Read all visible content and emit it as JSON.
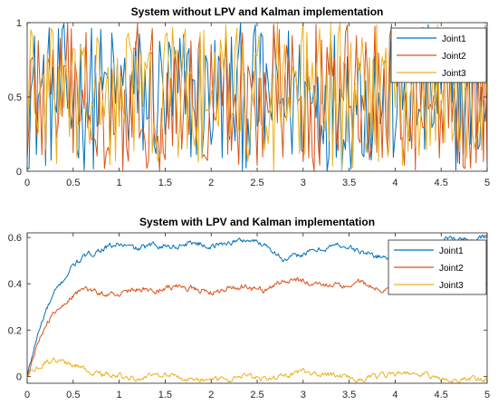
{
  "chart_data": [
    {
      "type": "line",
      "title": "System without LPV and Kalman implementation",
      "xlabel": "",
      "ylabel": "",
      "xlim": [
        0,
        5
      ],
      "ylim": [
        0,
        1
      ],
      "xticks": [
        0,
        0.5,
        1,
        1.5,
        2,
        2.5,
        3,
        3.5,
        4,
        4.5,
        5
      ],
      "xtick_labels": [
        "0",
        "0.5",
        "1",
        "1.5",
        "2",
        "2.5",
        "3",
        "3.5",
        "4",
        "4.5",
        "5"
      ],
      "yticks": [
        0,
        0.5,
        1
      ],
      "ytick_labels": [
        "0",
        "0.5",
        "1"
      ],
      "grid": false,
      "legend_position": "top-right",
      "series": [
        {
          "name": "Joint1",
          "color": "#0072BD",
          "style": "uniform-random",
          "min": 0,
          "max": 1
        },
        {
          "name": "Joint2",
          "color": "#D95319",
          "style": "uniform-random",
          "min": 0,
          "max": 1
        },
        {
          "name": "Joint3",
          "color": "#EDB120",
          "style": "uniform-random",
          "min": 0,
          "max": 1
        }
      ]
    },
    {
      "type": "line",
      "title": "System with LPV and Kalman implementation",
      "xlabel": "",
      "ylabel": "",
      "xlim": [
        0,
        5
      ],
      "ylim": [
        -0.03,
        0.62
      ],
      "xticks": [
        0,
        0.5,
        1,
        1.5,
        2,
        2.5,
        3,
        3.5,
        4,
        4.5,
        5
      ],
      "xtick_labels": [
        "0",
        "0.5",
        "1",
        "1.5",
        "2",
        "2.5",
        "3",
        "3.5",
        "4",
        "4.5",
        "5"
      ],
      "yticks": [
        0,
        0.2,
        0.4,
        0.6
      ],
      "ytick_labels": [
        "0",
        "0.2",
        "0.4",
        "0.6"
      ],
      "grid": false,
      "legend_position": "top-right",
      "series": [
        {
          "name": "Joint1",
          "color": "#0072BD",
          "x": [
            0,
            0.1,
            0.2,
            0.3,
            0.4,
            0.5,
            0.6,
            0.7,
            0.8,
            1.0,
            1.2,
            1.4,
            1.6,
            1.8,
            2.0,
            2.2,
            2.4,
            2.6,
            2.8,
            3.0,
            3.2,
            3.4,
            3.6,
            3.8,
            4.0,
            4.2,
            4.4,
            4.6,
            4.8,
            5.0
          ],
          "values": [
            0.0,
            0.16,
            0.28,
            0.36,
            0.42,
            0.48,
            0.51,
            0.53,
            0.55,
            0.57,
            0.55,
            0.57,
            0.56,
            0.58,
            0.56,
            0.58,
            0.59,
            0.57,
            0.5,
            0.53,
            0.55,
            0.57,
            0.54,
            0.52,
            0.51,
            0.55,
            0.57,
            0.6,
            0.59,
            0.6
          ]
        },
        {
          "name": "Joint2",
          "color": "#D95319",
          "x": [
            0,
            0.1,
            0.2,
            0.3,
            0.4,
            0.5,
            0.6,
            0.7,
            0.8,
            1.0,
            1.2,
            1.4,
            1.6,
            1.8,
            2.0,
            2.2,
            2.4,
            2.6,
            2.8,
            3.0,
            3.2,
            3.4,
            3.6,
            3.8,
            4.0,
            4.2,
            4.4,
            4.6,
            4.8,
            5.0
          ],
          "values": [
            0.0,
            0.13,
            0.22,
            0.28,
            0.32,
            0.35,
            0.37,
            0.37,
            0.36,
            0.36,
            0.38,
            0.37,
            0.39,
            0.38,
            0.36,
            0.38,
            0.39,
            0.37,
            0.42,
            0.41,
            0.4,
            0.39,
            0.41,
            0.38,
            0.37,
            0.4,
            0.38,
            0.39,
            0.38,
            0.39
          ]
        },
        {
          "name": "Joint3",
          "color": "#EDB120",
          "x": [
            0,
            0.1,
            0.2,
            0.3,
            0.4,
            0.5,
            0.6,
            0.7,
            0.8,
            1.0,
            1.2,
            1.4,
            1.6,
            1.8,
            2.0,
            2.2,
            2.4,
            2.6,
            2.8,
            3.0,
            3.2,
            3.4,
            3.6,
            3.8,
            4.0,
            4.2,
            4.4,
            4.6,
            4.8,
            5.0
          ],
          "values": [
            0.0,
            0.04,
            0.06,
            0.07,
            0.06,
            0.05,
            0.04,
            0.02,
            0.01,
            0.0,
            -0.01,
            0.01,
            0.0,
            -0.01,
            -0.02,
            -0.01,
            0.0,
            -0.01,
            0.0,
            0.02,
            0.01,
            0.0,
            -0.01,
            0.0,
            0.01,
            0.02,
            0.0,
            -0.02,
            -0.01,
            -0.01
          ]
        }
      ]
    }
  ]
}
